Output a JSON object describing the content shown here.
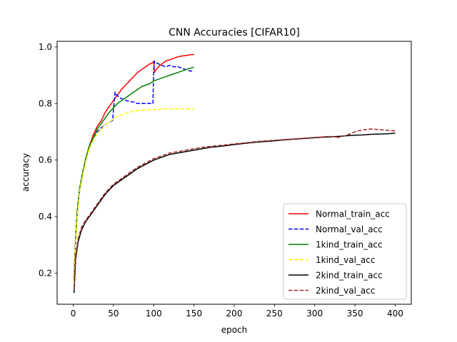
{
  "chart_data": {
    "type": "line",
    "title": "CNN Accuracies [CIFAR10]",
    "xlabel": "epoch",
    "ylabel": "accuracy",
    "xlim": [
      -20,
      420
    ],
    "ylim": [
      0.09,
      1.02
    ],
    "xticks": [
      0,
      50,
      100,
      150,
      200,
      250,
      300,
      350,
      400
    ],
    "yticks": [
      0.2,
      0.4,
      0.6,
      0.8,
      1.0
    ],
    "ytick_labels": [
      "0.2",
      "0.4",
      "0.6",
      "0.8",
      "1.0"
    ],
    "grid": false,
    "legend": "lower-right",
    "series": [
      {
        "name": "Normal_train_acc",
        "color": "#ff0000",
        "dash": "solid",
        "points": [
          [
            1,
            0.18
          ],
          [
            3,
            0.33
          ],
          [
            5,
            0.42
          ],
          [
            8,
            0.5
          ],
          [
            12,
            0.56
          ],
          [
            16,
            0.61
          ],
          [
            20,
            0.65
          ],
          [
            25,
            0.69
          ],
          [
            30,
            0.72
          ],
          [
            35,
            0.74
          ],
          [
            40,
            0.77
          ],
          [
            45,
            0.79
          ],
          [
            50,
            0.81
          ],
          [
            55,
            0.83
          ],
          [
            60,
            0.85
          ],
          [
            65,
            0.865
          ],
          [
            70,
            0.88
          ],
          [
            75,
            0.895
          ],
          [
            80,
            0.91
          ],
          [
            85,
            0.92
          ],
          [
            90,
            0.93
          ],
          [
            95,
            0.94
          ],
          [
            99,
            0.945
          ],
          [
            100,
            0.95
          ],
          [
            101,
            0.91
          ],
          [
            103,
            0.92
          ],
          [
            106,
            0.93
          ],
          [
            110,
            0.94
          ],
          [
            115,
            0.95
          ],
          [
            120,
            0.955
          ],
          [
            125,
            0.96
          ],
          [
            130,
            0.965
          ],
          [
            135,
            0.968
          ],
          [
            140,
            0.97
          ],
          [
            145,
            0.972
          ],
          [
            150,
            0.974
          ]
        ]
      },
      {
        "name": "Normal_val_acc",
        "color": "#0000ff",
        "dash": "dashed",
        "points": [
          [
            1,
            0.17
          ],
          [
            3,
            0.32
          ],
          [
            5,
            0.4
          ],
          [
            8,
            0.49
          ],
          [
            12,
            0.55
          ],
          [
            16,
            0.6
          ],
          [
            20,
            0.64
          ],
          [
            25,
            0.68
          ],
          [
            30,
            0.7
          ],
          [
            35,
            0.715
          ],
          [
            40,
            0.725
          ],
          [
            45,
            0.735
          ],
          [
            49,
            0.74
          ],
          [
            50,
            0.78
          ],
          [
            52,
            0.84
          ],
          [
            54,
            0.83
          ],
          [
            58,
            0.82
          ],
          [
            62,
            0.815
          ],
          [
            66,
            0.81
          ],
          [
            70,
            0.808
          ],
          [
            75,
            0.805
          ],
          [
            80,
            0.8
          ],
          [
            85,
            0.8
          ],
          [
            90,
            0.8
          ],
          [
            95,
            0.8
          ],
          [
            99,
            0.8
          ],
          [
            100,
            0.92
          ],
          [
            101,
            0.95
          ],
          [
            103,
            0.945
          ],
          [
            106,
            0.94
          ],
          [
            110,
            0.935
          ],
          [
            115,
            0.93
          ],
          [
            120,
            0.935
          ],
          [
            125,
            0.93
          ],
          [
            130,
            0.93
          ],
          [
            135,
            0.925
          ],
          [
            140,
            0.92
          ],
          [
            145,
            0.915
          ],
          [
            150,
            0.915
          ]
        ]
      },
      {
        "name": "1kind_train_acc",
        "color": "#008000",
        "dash": "solid",
        "points": [
          [
            1,
            0.17
          ],
          [
            3,
            0.32
          ],
          [
            5,
            0.42
          ],
          [
            8,
            0.5
          ],
          [
            12,
            0.56
          ],
          [
            16,
            0.61
          ],
          [
            20,
            0.65
          ],
          [
            25,
            0.68
          ],
          [
            30,
            0.71
          ],
          [
            35,
            0.73
          ],
          [
            40,
            0.75
          ],
          [
            45,
            0.77
          ],
          [
            50,
            0.785
          ],
          [
            55,
            0.8
          ],
          [
            60,
            0.81
          ],
          [
            65,
            0.82
          ],
          [
            70,
            0.83
          ],
          [
            75,
            0.84
          ],
          [
            80,
            0.85
          ],
          [
            85,
            0.86
          ],
          [
            90,
            0.865
          ],
          [
            95,
            0.87
          ],
          [
            100,
            0.88
          ],
          [
            105,
            0.885
          ],
          [
            110,
            0.89
          ],
          [
            115,
            0.895
          ],
          [
            120,
            0.9
          ],
          [
            125,
            0.905
          ],
          [
            130,
            0.91
          ],
          [
            135,
            0.915
          ],
          [
            140,
            0.92
          ],
          [
            145,
            0.925
          ],
          [
            150,
            0.928
          ]
        ]
      },
      {
        "name": "1kind_val_acc",
        "color": "#ffff00",
        "dash": "dashed",
        "points": [
          [
            1,
            0.17
          ],
          [
            3,
            0.31
          ],
          [
            5,
            0.4
          ],
          [
            8,
            0.49
          ],
          [
            12,
            0.55
          ],
          [
            16,
            0.6
          ],
          [
            20,
            0.64
          ],
          [
            25,
            0.67
          ],
          [
            30,
            0.695
          ],
          [
            35,
            0.71
          ],
          [
            40,
            0.725
          ],
          [
            45,
            0.735
          ],
          [
            50,
            0.745
          ],
          [
            55,
            0.755
          ],
          [
            60,
            0.76
          ],
          [
            65,
            0.765
          ],
          [
            70,
            0.77
          ],
          [
            75,
            0.772
          ],
          [
            80,
            0.775
          ],
          [
            85,
            0.776
          ],
          [
            90,
            0.777
          ],
          [
            95,
            0.778
          ],
          [
            100,
            0.779
          ],
          [
            105,
            0.78
          ],
          [
            110,
            0.78
          ],
          [
            115,
            0.781
          ],
          [
            120,
            0.781
          ],
          [
            125,
            0.78
          ],
          [
            130,
            0.781
          ],
          [
            135,
            0.781
          ],
          [
            140,
            0.78
          ],
          [
            145,
            0.781
          ],
          [
            150,
            0.781
          ]
        ]
      },
      {
        "name": "2kind_train_acc",
        "color": "#000000",
        "dash": "solid",
        "points": [
          [
            1,
            0.13
          ],
          [
            3,
            0.25
          ],
          [
            6,
            0.31
          ],
          [
            10,
            0.35
          ],
          [
            15,
            0.38
          ],
          [
            20,
            0.4
          ],
          [
            30,
            0.44
          ],
          [
            40,
            0.48
          ],
          [
            50,
            0.51
          ],
          [
            60,
            0.53
          ],
          [
            70,
            0.55
          ],
          [
            80,
            0.57
          ],
          [
            90,
            0.585
          ],
          [
            100,
            0.6
          ],
          [
            110,
            0.61
          ],
          [
            120,
            0.62
          ],
          [
            130,
            0.625
          ],
          [
            140,
            0.63
          ],
          [
            150,
            0.635
          ],
          [
            160,
            0.64
          ],
          [
            170,
            0.645
          ],
          [
            180,
            0.648
          ],
          [
            190,
            0.651
          ],
          [
            200,
            0.655
          ],
          [
            210,
            0.658
          ],
          [
            220,
            0.661
          ],
          [
            230,
            0.664
          ],
          [
            240,
            0.666
          ],
          [
            250,
            0.668
          ],
          [
            260,
            0.671
          ],
          [
            270,
            0.673
          ],
          [
            280,
            0.675
          ],
          [
            290,
            0.677
          ],
          [
            300,
            0.679
          ],
          [
            310,
            0.681
          ],
          [
            320,
            0.682
          ],
          [
            330,
            0.684
          ],
          [
            340,
            0.686
          ],
          [
            350,
            0.688
          ],
          [
            360,
            0.689
          ],
          [
            370,
            0.691
          ],
          [
            380,
            0.692
          ],
          [
            390,
            0.693
          ],
          [
            400,
            0.695
          ]
        ]
      },
      {
        "name": "2kind_val_acc",
        "color": "#a52a2a",
        "dash": "dashed",
        "points": [
          [
            1,
            0.14
          ],
          [
            3,
            0.26
          ],
          [
            6,
            0.32
          ],
          [
            10,
            0.36
          ],
          [
            15,
            0.385
          ],
          [
            20,
            0.405
          ],
          [
            30,
            0.445
          ],
          [
            40,
            0.485
          ],
          [
            50,
            0.515
          ],
          [
            60,
            0.535
          ],
          [
            70,
            0.555
          ],
          [
            80,
            0.575
          ],
          [
            90,
            0.59
          ],
          [
            100,
            0.605
          ],
          [
            110,
            0.615
          ],
          [
            120,
            0.625
          ],
          [
            130,
            0.63
          ],
          [
            140,
            0.635
          ],
          [
            150,
            0.64
          ],
          [
            160,
            0.645
          ],
          [
            170,
            0.648
          ],
          [
            180,
            0.651
          ],
          [
            190,
            0.654
          ],
          [
            200,
            0.657
          ],
          [
            210,
            0.66
          ],
          [
            220,
            0.663
          ],
          [
            230,
            0.666
          ],
          [
            240,
            0.668
          ],
          [
            250,
            0.67
          ],
          [
            260,
            0.672
          ],
          [
            270,
            0.674
          ],
          [
            280,
            0.676
          ],
          [
            290,
            0.678
          ],
          [
            300,
            0.68
          ],
          [
            310,
            0.682
          ],
          [
            320,
            0.684
          ],
          [
            330,
            0.68
          ],
          [
            340,
            0.688
          ],
          [
            350,
            0.7
          ],
          [
            360,
            0.707
          ],
          [
            370,
            0.71
          ],
          [
            380,
            0.708
          ],
          [
            390,
            0.705
          ],
          [
            400,
            0.703
          ]
        ]
      }
    ]
  }
}
